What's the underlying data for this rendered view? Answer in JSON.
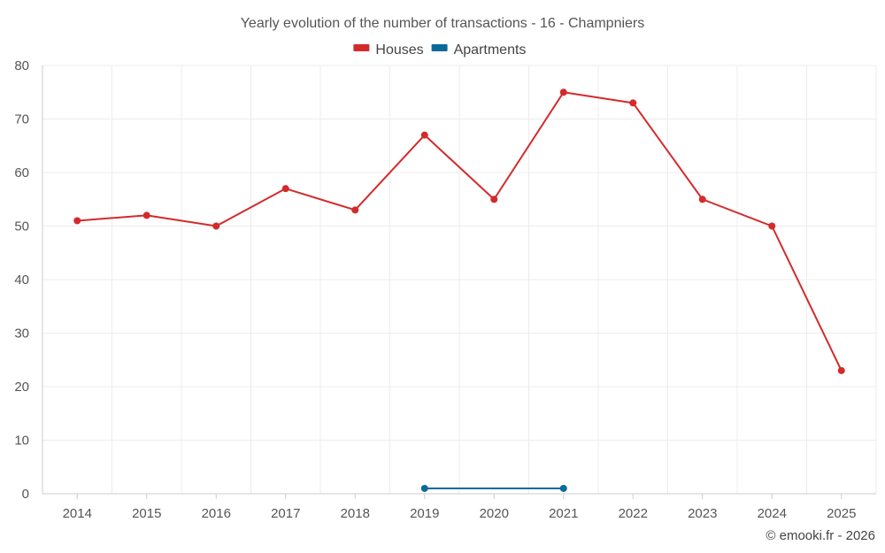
{
  "chart_data": {
    "type": "line",
    "title": "Yearly evolution of the number of transactions - 16 - Champniers",
    "categories": [
      "2014",
      "2015",
      "2016",
      "2017",
      "2018",
      "2019",
      "2020",
      "2021",
      "2022",
      "2023",
      "2024",
      "2025"
    ],
    "series": [
      {
        "name": "Houses",
        "color": "#d42a2a",
        "values": [
          51,
          52,
          50,
          57,
          53,
          67,
          55,
          75,
          73,
          55,
          50,
          23
        ]
      },
      {
        "name": "Apartments",
        "color": "#0a6a9a",
        "values": [
          null,
          null,
          null,
          null,
          null,
          1,
          null,
          1,
          null,
          null,
          null,
          null
        ]
      }
    ],
    "ylim": [
      0,
      80
    ],
    "yticks": [
      "0",
      "10",
      "20",
      "30",
      "40",
      "50",
      "60",
      "70",
      "80"
    ],
    "xlabel": "",
    "ylabel": "",
    "legend_position": "top-center",
    "grid": true
  },
  "credit": "© emooki.fr - 2026"
}
